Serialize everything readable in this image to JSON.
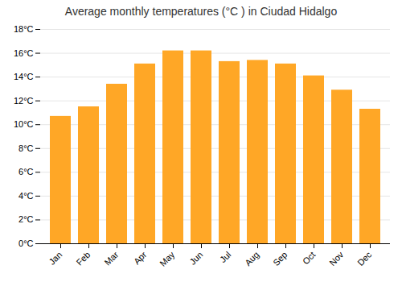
{
  "chart_data": {
    "type": "bar",
    "title": "Average monthly temperatures (°C ) in Ciudad Hidalgo",
    "categories": [
      "Jan",
      "Feb",
      "Mar",
      "Apr",
      "May",
      "Jun",
      "Jul",
      "Aug",
      "Sep",
      "Oct",
      "Nov",
      "Dec"
    ],
    "values": [
      10.7,
      11.5,
      13.4,
      15.1,
      16.2,
      16.2,
      15.3,
      15.4,
      15.1,
      14.1,
      12.9,
      11.3
    ],
    "color": "#FFA726",
    "ylim": [
      0,
      18
    ],
    "yticks": [
      {
        "value": 0,
        "label": "0°C"
      },
      {
        "value": 2,
        "label": "2°C"
      },
      {
        "value": 4,
        "label": "4°C"
      },
      {
        "value": 6,
        "label": "6°C"
      },
      {
        "value": 8,
        "label": "8°C"
      },
      {
        "value": 10,
        "label": "10°C"
      },
      {
        "value": 12,
        "label": "12°C"
      },
      {
        "value": 14,
        "label": "14°C"
      },
      {
        "value": 16,
        "label": "16°C"
      },
      {
        "value": 18,
        "label": "18°C"
      }
    ],
    "grid": true
  }
}
